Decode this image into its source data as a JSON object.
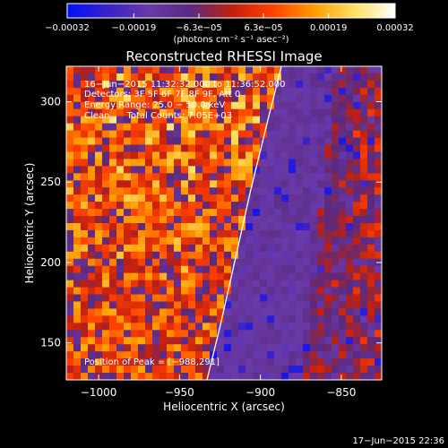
{
  "chart_data": {
    "type": "heatmap",
    "title": "Reconstructed RHESSI Image",
    "xlabel": "Heliocentric X (arcsec)",
    "ylabel": "Heliocentric Y (arcsec)",
    "xlim": [
      -1020,
      -825
    ],
    "ylim": [
      127,
      322
    ],
    "xticks": [
      -1000,
      -950,
      -900,
      -850
    ],
    "yticks": [
      150,
      200,
      250,
      300
    ],
    "xtick_labels": [
      "−1000",
      "−950",
      "−900",
      "−850"
    ],
    "ytick_labels": [
      "150",
      "200",
      "250",
      "300"
    ],
    "colorbar": {
      "range": [
        -0.00032,
        0.00032
      ],
      "ticks": [
        -0.00032,
        -0.00019,
        -6.3e-05,
        6.3e-05,
        0.00019,
        0.00032
      ],
      "tick_labels": [
        "−0.00032",
        "−0.00019",
        "−6.3e−05",
        "6.3e−05",
        "0.00019",
        "0.00032"
      ],
      "unit_label": "(photons cm⁻² s⁻¹ asec⁻²)"
    },
    "annotations": {
      "time_range": "16−Jun−2015 11:32:32.000 to 11:36:52.000",
      "detectors": "Detectors: 3F 5F 6F 7F 8F 9F, Att 0",
      "energy_range": "Energy Range: 25.0 − 50.0 keV",
      "algorithm": "Clean      Total Counts: 7.05E+03",
      "peak": "Position of Peak = [−988,291]"
    },
    "limb_curve": [
      [
        -933,
        127
      ],
      [
        -925,
        160
      ],
      [
        -916,
        200
      ],
      [
        -906,
        245
      ],
      [
        -895,
        290
      ],
      [
        -887,
        322
      ]
    ],
    "footer": "17−Jun−2015 22:36"
  },
  "colors": {
    "background": "#000000",
    "colormap": [
      "#0010ff",
      "#3a22c8",
      "#6a3aa8",
      "#5a2a80",
      "#c02010",
      "#ff4000",
      "#ff9a00",
      "#ffe060",
      "#ffffff"
    ],
    "limb": "#ffffff"
  }
}
